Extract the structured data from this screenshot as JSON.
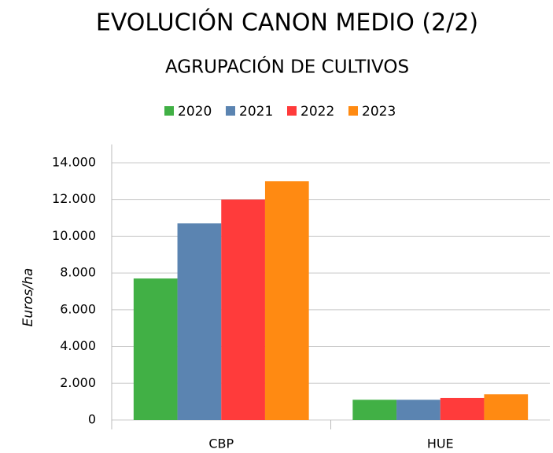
{
  "chart_data": {
    "type": "bar",
    "title": "EVOLUCIÓN CANON MEDIO (2/2)",
    "subtitle": "AGRUPACIÓN DE CULTIVOS",
    "y_label": "Euros/ha",
    "categories": [
      "CBP",
      "HUE"
    ],
    "series": [
      {
        "name": "2020",
        "color": "#41b045",
        "values": [
          7700,
          1100
        ]
      },
      {
        "name": "2021",
        "color": "#5b84b1",
        "values": [
          10700,
          1100
        ]
      },
      {
        "name": "2022",
        "color": "#ff3b3b",
        "values": [
          12000,
          1200
        ]
      },
      {
        "name": "2023",
        "color": "#ff8a12",
        "values": [
          13000,
          1400
        ]
      }
    ],
    "ylim": [
      0,
      15000
    ],
    "yticks": [
      0,
      {
        "value": 2000,
        "label": "2.000"
      },
      {
        "value": 4000,
        "label": "4.000"
      },
      {
        "value": 6000,
        "label": "6.000"
      },
      {
        "value": 8000,
        "label": "8.000"
      },
      {
        "value": 10000,
        "label": "10.000"
      },
      {
        "value": 12000,
        "label": "12.000"
      },
      {
        "value": 14000,
        "label": "14.000"
      }
    ],
    "grid": true
  }
}
